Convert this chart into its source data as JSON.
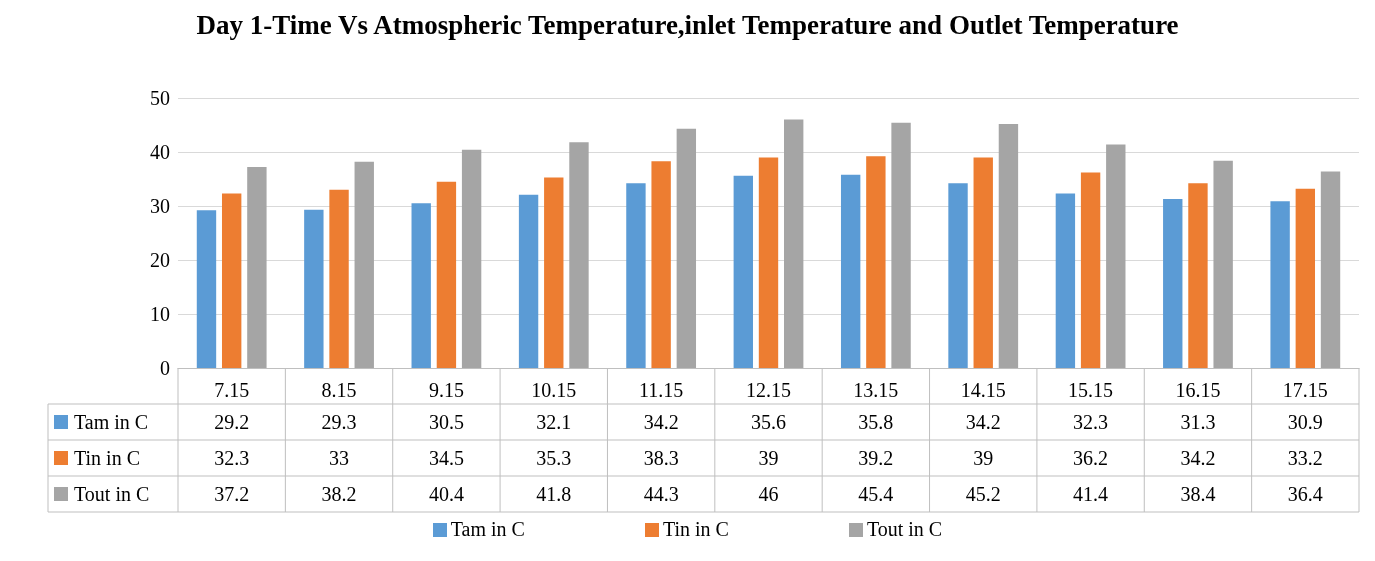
{
  "chart_data": {
    "type": "bar",
    "title": "Day 1-Time Vs Atmospheric Temperature,inlet Temperature and Outlet Temperature",
    "categories": [
      "7.15",
      "8.15",
      "9.15",
      "10.15",
      "11.15",
      "12.15",
      "13.15",
      "14.15",
      "15.15",
      "16.15",
      "17.15"
    ],
    "series": [
      {
        "name": "Tam in C",
        "color": "#5b9bd5",
        "values": [
          29.2,
          29.3,
          30.5,
          32.1,
          34.2,
          35.6,
          35.8,
          34.2,
          32.3,
          31.3,
          30.9
        ]
      },
      {
        "name": "Tin in C",
        "color": "#ed7d31",
        "values": [
          32.3,
          33,
          34.5,
          35.3,
          38.3,
          39,
          39.2,
          39,
          36.2,
          34.2,
          33.2
        ]
      },
      {
        "name": "Tout in C",
        "color": "#a5a5a5",
        "values": [
          37.2,
          38.2,
          40.4,
          41.8,
          44.3,
          46,
          45.4,
          45.2,
          41.4,
          38.4,
          36.4
        ]
      }
    ],
    "ylim": [
      0,
      50
    ],
    "yticks": [
      0,
      10,
      20,
      30,
      40,
      50
    ],
    "grid": "y",
    "legend": "bottom",
    "data_labels": true
  }
}
